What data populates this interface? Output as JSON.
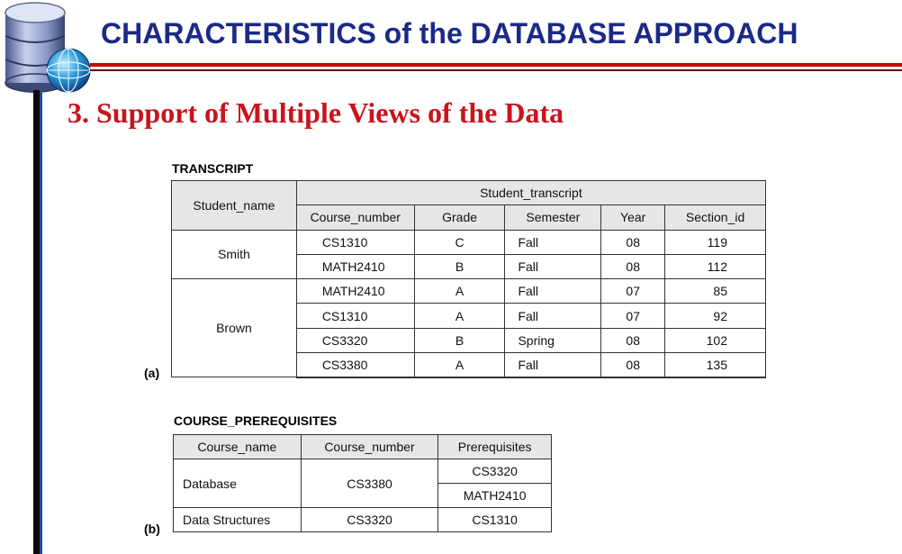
{
  "slide": {
    "title": "CHARACTERISTICS of the DATABASE APPROACH",
    "subtitle": "3.   Support of Multiple Views of the Data"
  },
  "figure": {
    "panel_a_label": "(a)",
    "panel_b_label": "(b)",
    "transcript": {
      "caption": "TRANSCRIPT",
      "group_header": "Student_transcript",
      "name_header": "Student_name",
      "columns": [
        "Course_number",
        "Grade",
        "Semester",
        "Year",
        "Section_id"
      ],
      "groups": [
        {
          "student": "Smith",
          "rows": [
            [
              "CS1310",
              "C",
              "Fall",
              "08",
              "119"
            ],
            [
              "MATH2410",
              "B",
              "Fall",
              "08",
              "112"
            ]
          ]
        },
        {
          "student": "Brown",
          "rows": [
            [
              "MATH2410",
              "A",
              "Fall",
              "07",
              "85"
            ],
            [
              "CS1310",
              "A",
              "Fall",
              "07",
              "92"
            ],
            [
              "CS3320",
              "B",
              "Spring",
              "08",
              "102"
            ],
            [
              "CS3380",
              "A",
              "Fall",
              "08",
              "135"
            ]
          ]
        }
      ]
    },
    "prerequisites": {
      "caption": "COURSE_PREREQUISITES",
      "columns": [
        "Course_name",
        "Course_number",
        "Prerequisites"
      ],
      "rows": [
        {
          "course_name": "Database",
          "course_number": "CS3380",
          "prerequisites": [
            "CS3320",
            "MATH2410"
          ]
        },
        {
          "course_name": "Data Structures",
          "course_number": "CS3320",
          "prerequisites": [
            "CS1310"
          ]
        }
      ]
    }
  },
  "colors": {
    "title": "#1a2a85",
    "subtitle": "#c8141d",
    "rule": "#cc0000",
    "header_fill": "#e6e6e6"
  },
  "icons": [
    "database-globe-icon"
  ]
}
